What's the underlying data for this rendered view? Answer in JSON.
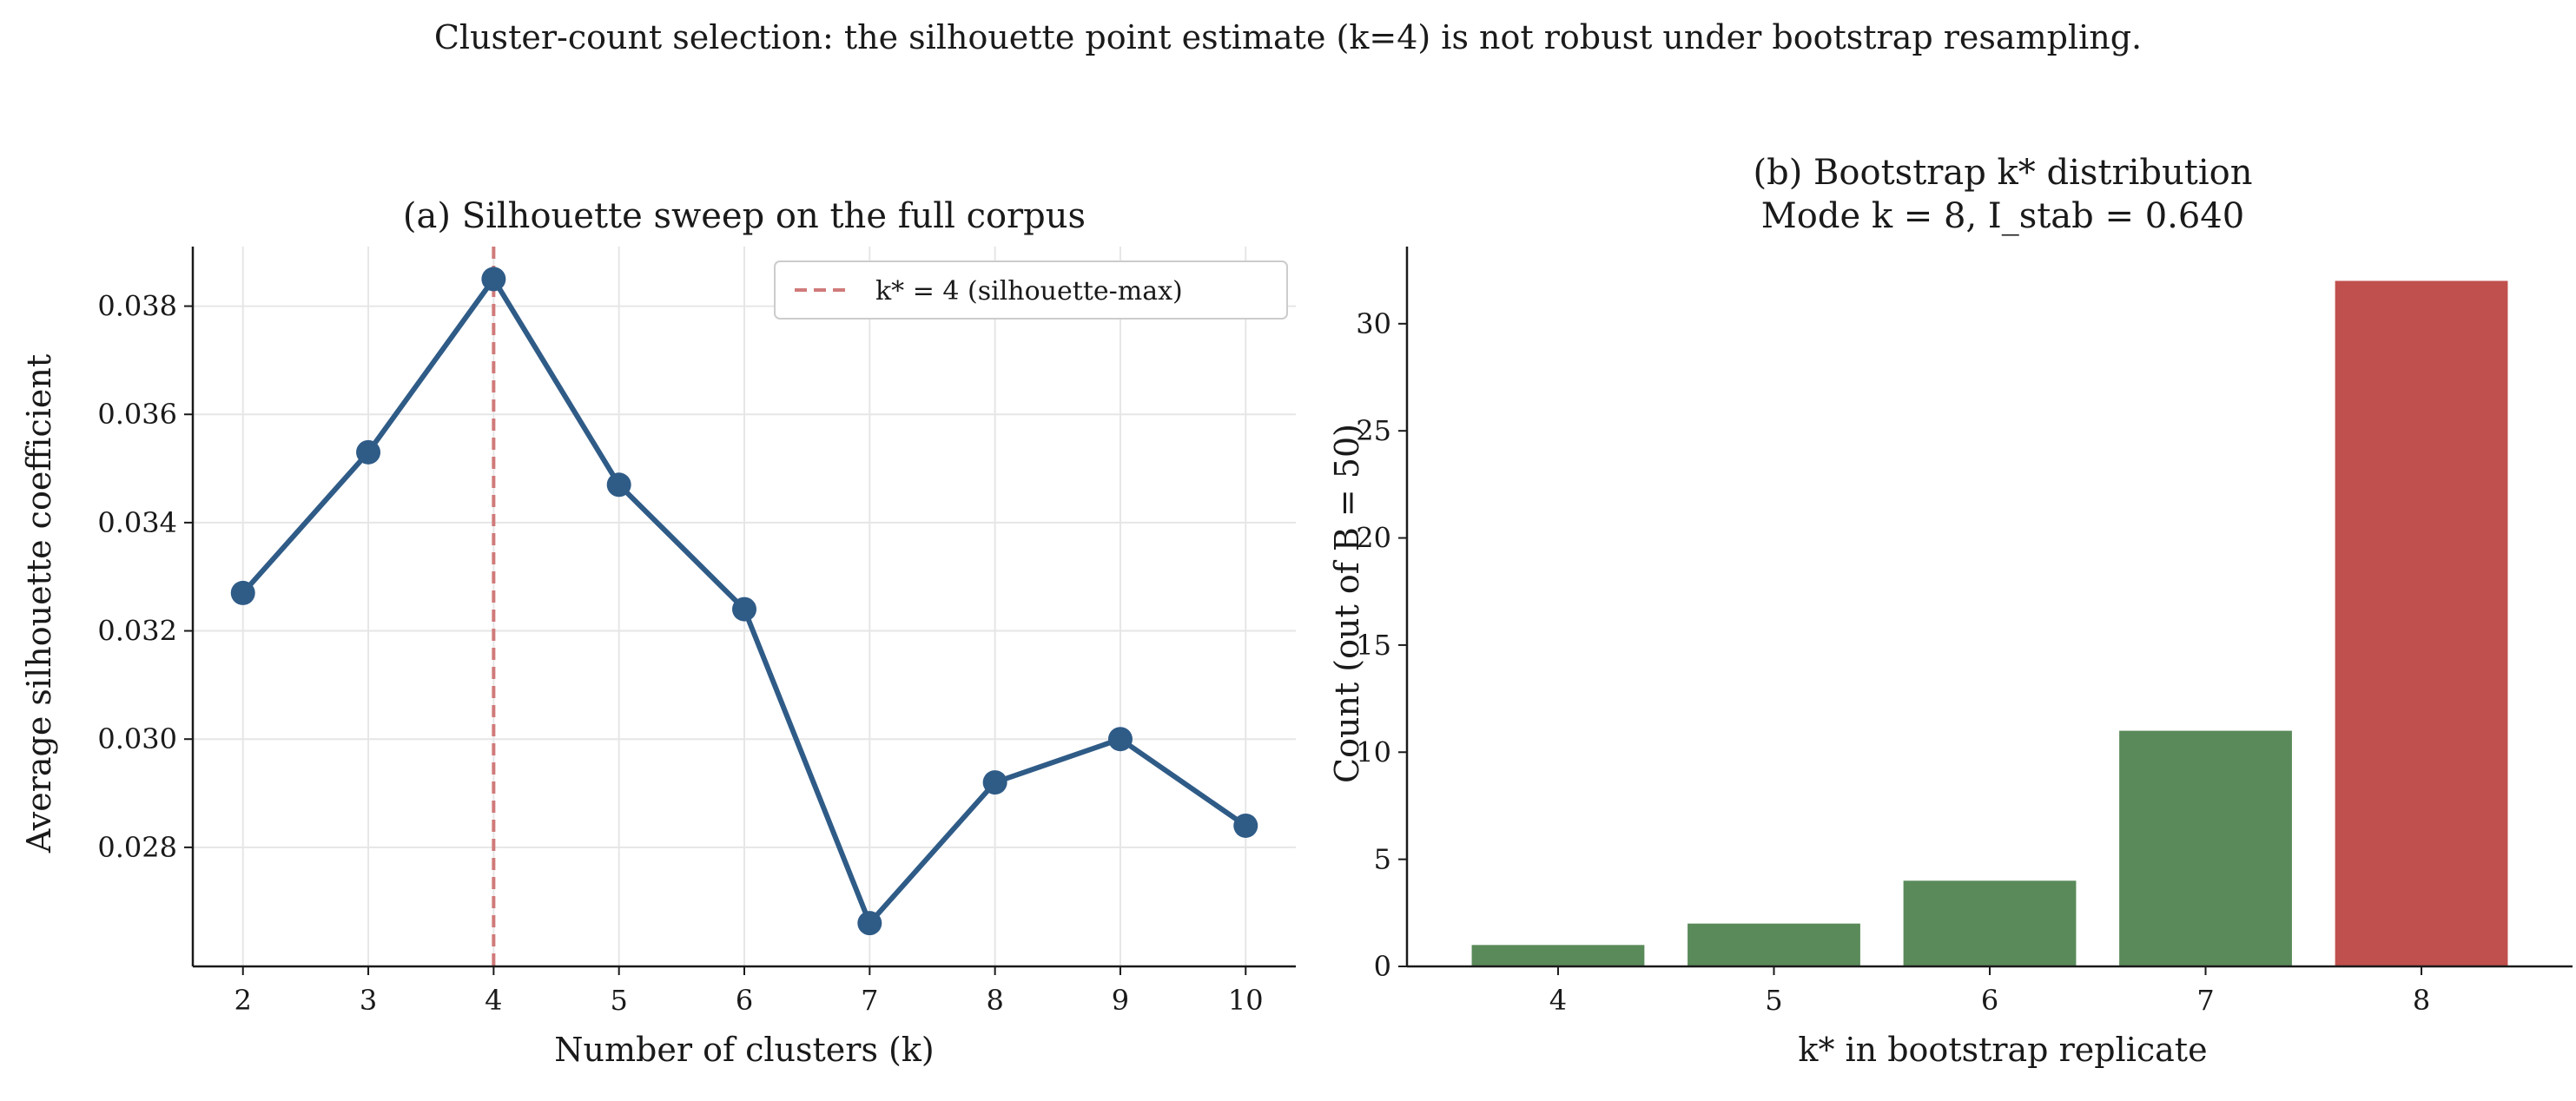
{
  "figure": {
    "suptitle": "Cluster-count selection: the silhouette point estimate (k=4) is not robust under bootstrap resampling."
  },
  "colors": {
    "line": "#2f5b87",
    "marker": "#2f5b87",
    "vline": "#d07a7a",
    "bar_default": "#5a8a5a",
    "bar_mode": "#c0504d",
    "grid": "#e6e6e6",
    "axis": "#1a1a1a"
  },
  "chart_data": [
    {
      "type": "line",
      "title": "(a) Silhouette sweep on the full corpus",
      "xlabel": "Number of clusters (k)",
      "ylabel": "Average silhouette coefficient",
      "x": [
        2,
        3,
        4,
        5,
        6,
        7,
        8,
        9,
        10
      ],
      "xticks": [
        "2",
        "3",
        "4",
        "5",
        "6",
        "7",
        "8",
        "9",
        "10"
      ],
      "y": [
        0.0327,
        0.0353,
        0.0385,
        0.0347,
        0.0324,
        0.0266,
        0.0292,
        0.03,
        0.0284
      ],
      "xlim": [
        1.6,
        10.4
      ],
      "ylim": [
        0.0258,
        0.0391
      ],
      "yticks": [
        "0.028",
        "0.030",
        "0.032",
        "0.034",
        "0.036",
        "0.038"
      ],
      "ytick_values": [
        0.028,
        0.03,
        0.032,
        0.034,
        0.036,
        0.038
      ],
      "grid": true,
      "vline": {
        "x": 4,
        "label": "k* = 4 (silhouette-max)"
      },
      "legend": "top-right"
    },
    {
      "type": "bar",
      "title": "(b) Bootstrap k* distribution",
      "subtitle": "Mode k = 8, I_stab = 0.640",
      "xlabel": "k* in bootstrap replicate",
      "ylabel": "Count (out of B = 50)",
      "categories": [
        "4",
        "5",
        "6",
        "7",
        "8"
      ],
      "values": [
        1,
        2,
        4,
        11,
        32
      ],
      "highlight": "8",
      "ylim": [
        0,
        33.6
      ],
      "yticks": [
        "0",
        "5",
        "10",
        "15",
        "20",
        "25",
        "30"
      ],
      "ytick_values": [
        0,
        5,
        10,
        15,
        20,
        25,
        30
      ],
      "grid": false
    }
  ]
}
